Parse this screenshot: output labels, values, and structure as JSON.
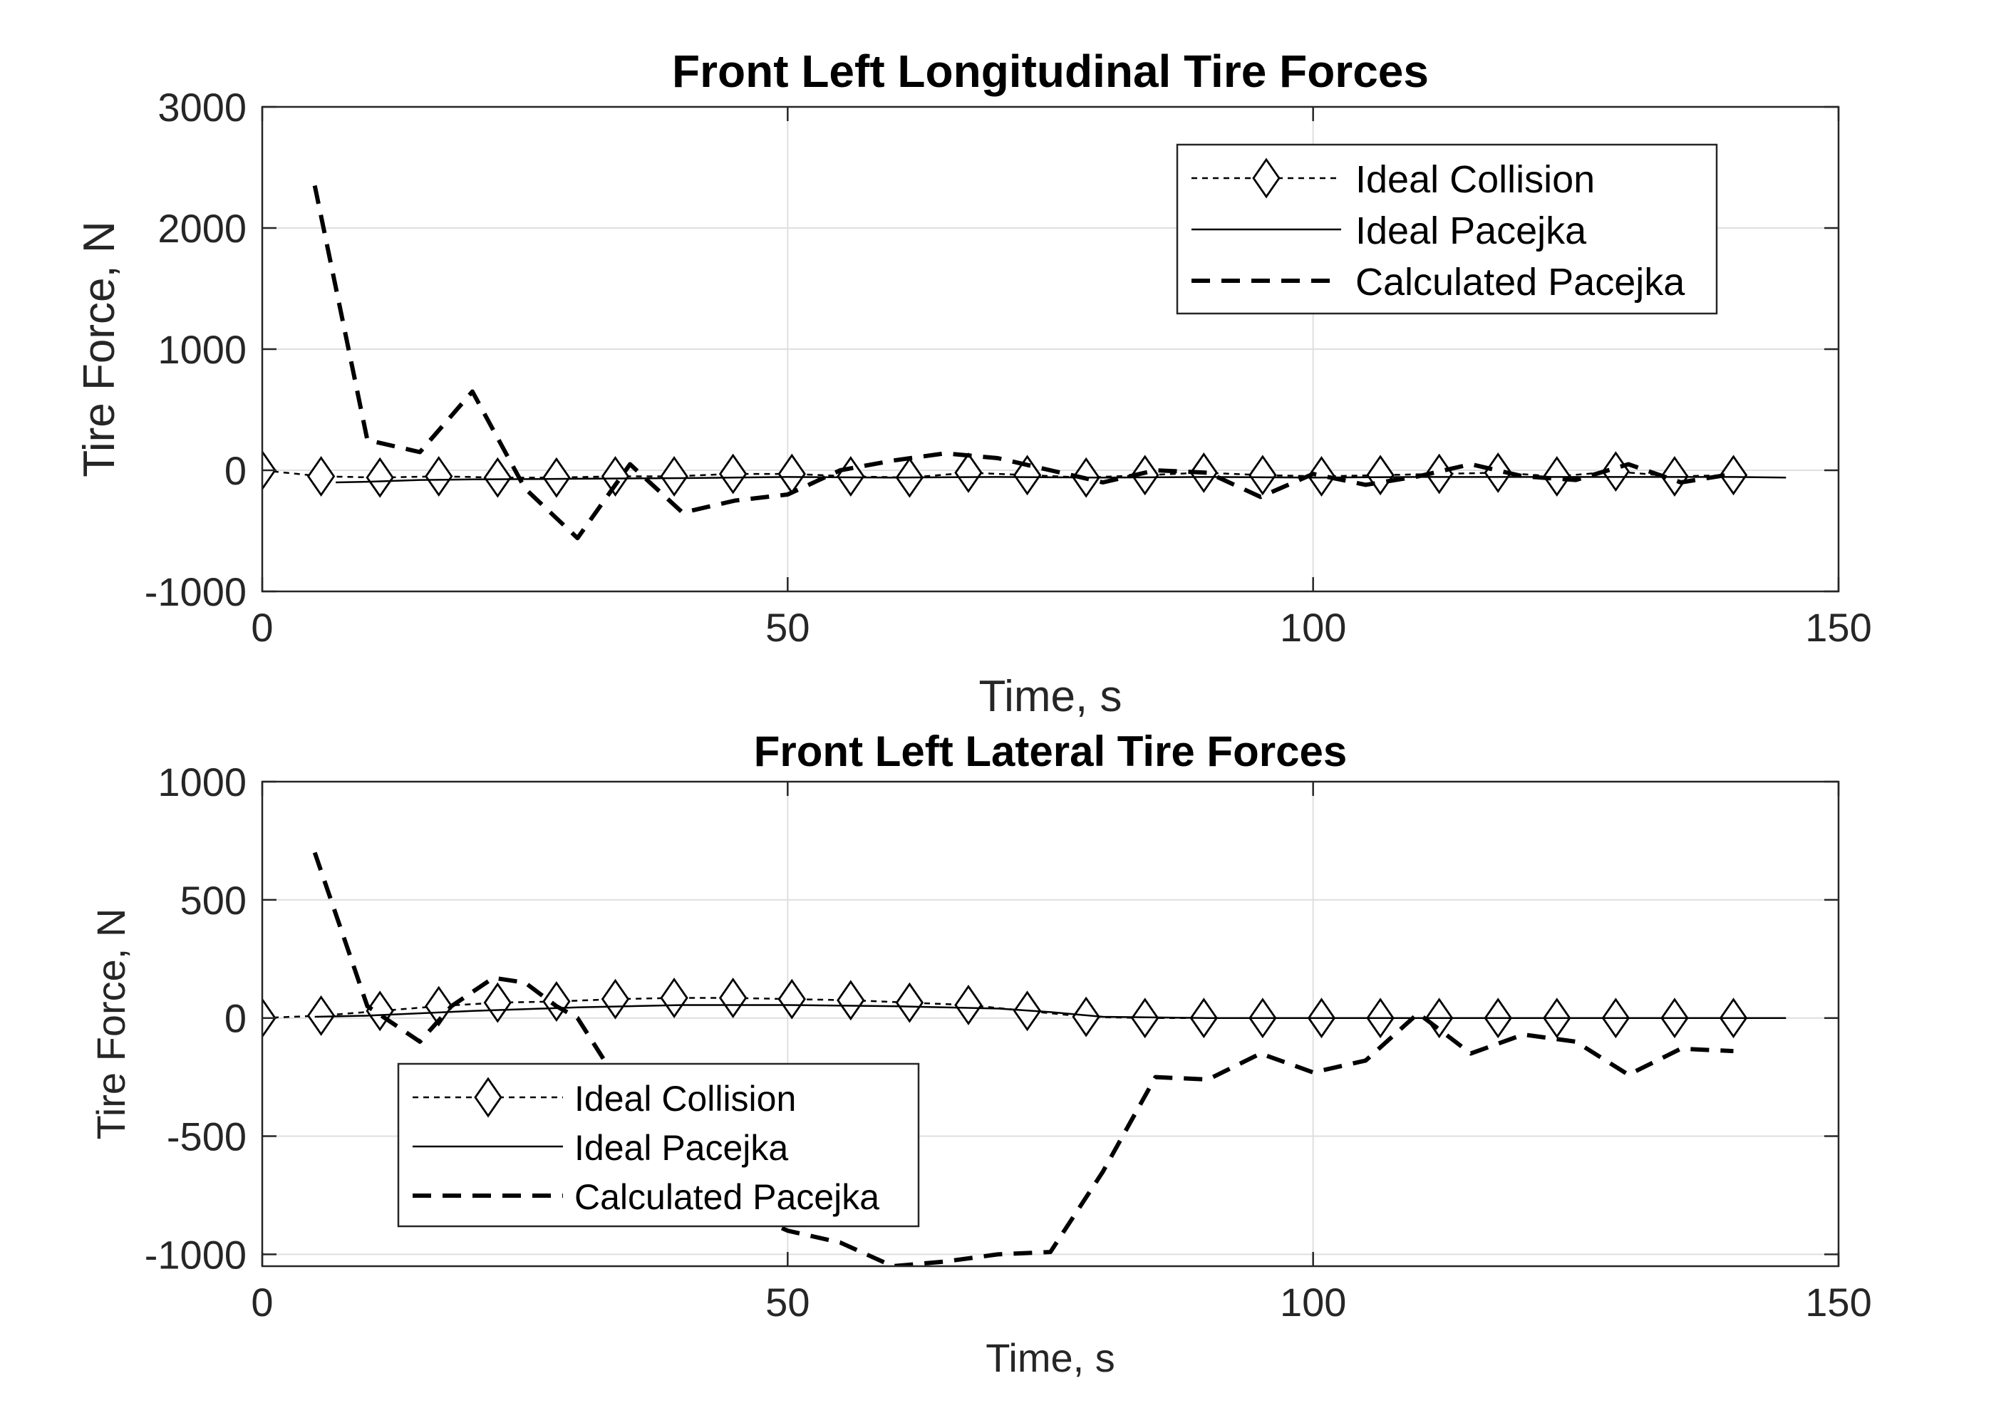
{
  "chart_data": [
    {
      "type": "line",
      "title": "Front Left Longitudinal Tire Forces",
      "xlabel": "Time, s",
      "ylabel": "Tire Force, N",
      "xlim": [
        0,
        150
      ],
      "ylim": [
        -1000,
        3000
      ],
      "xticks": [
        0,
        50,
        100,
        150
      ],
      "yticks": [
        -1000,
        0,
        1000,
        2000,
        3000
      ],
      "xtick_labels": [
        "0",
        "50",
        "100",
        "150"
      ],
      "ytick_labels": [
        "-1000",
        "0",
        "1000",
        "2000",
        "3000"
      ],
      "grid": true,
      "legend_position": "top-right",
      "series": [
        {
          "name": "Ideal Collision",
          "style": "dotted-diamond",
          "x": [
            0,
            5.6,
            11.2,
            16.8,
            22.4,
            28,
            33.6,
            39.2,
            44.8,
            50.4,
            56,
            61.6,
            67.2,
            72.8,
            78.4,
            84,
            89.6,
            95.2,
            100.8,
            106.4,
            112,
            117.6,
            123.2,
            128.8,
            134.4,
            140
          ],
          "y": [
            0,
            -50,
            -60,
            -50,
            -60,
            -60,
            -50,
            -50,
            -30,
            -30,
            -50,
            -60,
            -20,
            -40,
            -60,
            -40,
            -20,
            -40,
            -50,
            -40,
            -30,
            -20,
            -50,
            -10,
            -50,
            -40
          ]
        },
        {
          "name": "Ideal Pacejka",
          "style": "solid",
          "x": [
            7,
            10,
            15,
            20,
            30,
            40,
            50,
            60,
            70,
            80,
            90,
            100,
            110,
            120,
            130,
            140,
            145
          ],
          "y": [
            -100,
            -95,
            -80,
            -75,
            -70,
            -65,
            -55,
            -60,
            -55,
            -60,
            -55,
            -60,
            -55,
            -55,
            -55,
            -55,
            -60
          ]
        },
        {
          "name": "Calculated Pacejka",
          "style": "dashed",
          "x": [
            5,
            10,
            15,
            20,
            25,
            30,
            35,
            40,
            45,
            50,
            55,
            60,
            65,
            70,
            75,
            80,
            85,
            90,
            95,
            100,
            105,
            110,
            115,
            120,
            125,
            130,
            135,
            140
          ],
          "y": [
            2350,
            250,
            150,
            650,
            -150,
            -560,
            50,
            -350,
            -250,
            -200,
            0,
            80,
            140,
            100,
            0,
            -100,
            0,
            -20,
            -220,
            -30,
            -120,
            -50,
            50,
            -50,
            -80,
            50,
            -100,
            -30
          ]
        }
      ]
    },
    {
      "type": "line",
      "title": "Front Left Lateral Tire Forces",
      "xlabel": "Time, s",
      "ylabel": "Tire Force, N",
      "xlim": [
        0,
        150
      ],
      "ylim": [
        -1050,
        1000
      ],
      "xticks": [
        0,
        50,
        100,
        150
      ],
      "yticks": [
        -1000,
        -500,
        0,
        500,
        1000
      ],
      "xtick_labels": [
        "0",
        "50",
        "100",
        "150"
      ],
      "ytick_labels": [
        "-1000",
        "-500",
        "0",
        "500",
        "1000"
      ],
      "grid": true,
      "legend_position": "bottom-left",
      "series": [
        {
          "name": "Ideal Collision",
          "style": "dotted-diamond",
          "x": [
            0,
            5.6,
            11.2,
            16.8,
            22.4,
            28,
            33.6,
            39.2,
            44.8,
            50.4,
            56,
            61.6,
            67.2,
            72.8,
            78.4,
            84,
            89.6,
            95.2,
            100.8,
            106.4,
            112,
            117.6,
            123.2,
            128.8,
            134.4,
            140
          ],
          "y": [
            0,
            10,
            30,
            50,
            65,
            70,
            80,
            85,
            85,
            80,
            75,
            65,
            55,
            30,
            5,
            0,
            0,
            0,
            0,
            0,
            0,
            0,
            0,
            0,
            0,
            0
          ]
        },
        {
          "name": "Ideal Pacejka",
          "style": "solid",
          "x": [
            5,
            10,
            20,
            30,
            40,
            50,
            60,
            70,
            75,
            80,
            90,
            100,
            110,
            120,
            130,
            140,
            145
          ],
          "y": [
            5,
            10,
            30,
            45,
            55,
            55,
            50,
            40,
            25,
            5,
            0,
            0,
            0,
            0,
            0,
            0,
            0
          ]
        },
        {
          "name": "Calculated Pacejka",
          "style": "dashed",
          "x": [
            5,
            10,
            15,
            18,
            22,
            25,
            28,
            30,
            35,
            40,
            45,
            50,
            55,
            60,
            65,
            70,
            75,
            80,
            85,
            90,
            95,
            100,
            105,
            110,
            115,
            120,
            125,
            130,
            135,
            140
          ],
          "y": [
            700,
            50,
            -100,
            50,
            170,
            150,
            50,
            0,
            -350,
            -600,
            -800,
            -900,
            -950,
            -1050,
            -1030,
            -1000,
            -990,
            -650,
            -250,
            -260,
            -150,
            -230,
            -180,
            20,
            -150,
            -70,
            -100,
            -240,
            -130,
            -140
          ]
        }
      ]
    }
  ]
}
